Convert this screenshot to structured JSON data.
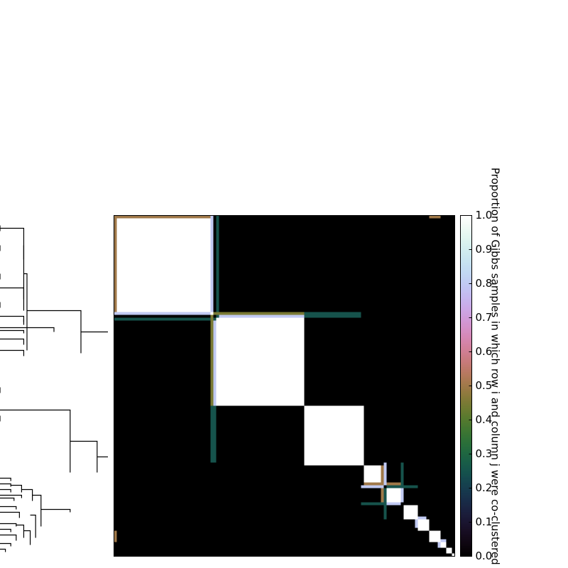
{
  "chart_data": {
    "type": "heatmap",
    "title": "",
    "colorbar": {
      "label": "Proportion of Gibbs samples in which row i and column j were co-clustered",
      "min": 0.0,
      "max": 1.0,
      "ticks": [
        "0.0",
        "0.1",
        "0.2",
        "0.3",
        "0.4",
        "0.5",
        "0.6",
        "0.7",
        "0.8",
        "0.9",
        "1.0"
      ],
      "colormap": "cubehelix"
    },
    "n": 120,
    "blocks": [
      {
        "start": 1,
        "end": 34,
        "value": 1.0
      },
      {
        "start": 36,
        "end": 66,
        "value": 1.0
      },
      {
        "start": 67,
        "end": 87,
        "value": 1.0
      },
      {
        "start": 88,
        "end": 94,
        "value": 1.0
      },
      {
        "start": 96,
        "end": 100,
        "value": 1.0
      },
      {
        "start": 102,
        "end": 106,
        "value": 1.0
      },
      {
        "start": 107,
        "end": 110,
        "value": 1.0
      },
      {
        "start": 111,
        "end": 114,
        "value": 1.0
      },
      {
        "start": 115,
        "end": 116,
        "value": 1.0
      },
      {
        "start": 117,
        "end": 118,
        "value": 1.0
      },
      {
        "start": 119,
        "end": 119,
        "value": 1.0
      }
    ],
    "bands": [
      {
        "i0": 0,
        "i1": 0,
        "j0": 0,
        "j1": 34,
        "value": 0.5
      },
      {
        "i0": 0,
        "i1": 34,
        "j0": 0,
        "j1": 0,
        "value": 0.5
      },
      {
        "i0": 0,
        "i1": 33,
        "j0": 34,
        "j1": 34,
        "value": 0.8
      },
      {
        "i0": 34,
        "i1": 34,
        "j0": 0,
        "j1": 33,
        "value": 0.8
      },
      {
        "i0": 0,
        "i1": 35,
        "j0": 36,
        "j1": 36,
        "value": 0.25
      },
      {
        "i0": 36,
        "i1": 36,
        "j0": 0,
        "j1": 35,
        "value": 0.25
      },
      {
        "i0": 37,
        "i1": 66,
        "j0": 35,
        "j1": 35,
        "value": 0.8
      },
      {
        "i0": 35,
        "i1": 35,
        "j0": 37,
        "j1": 66,
        "value": 0.8
      },
      {
        "i0": 35,
        "i1": 66,
        "j0": 34,
        "j1": 34,
        "value": 0.45
      },
      {
        "i0": 34,
        "i1": 34,
        "j0": 35,
        "j1": 66,
        "value": 0.45
      },
      {
        "i0": 67,
        "i1": 86,
        "j0": 34,
        "j1": 34,
        "value": 0.25
      },
      {
        "i0": 34,
        "i1": 34,
        "j0": 67,
        "j1": 86,
        "value": 0.25
      },
      {
        "i0": 35,
        "i1": 35,
        "j0": 67,
        "j1": 86,
        "value": 0.25
      },
      {
        "i0": 67,
        "i1": 86,
        "j0": 35,
        "j1": 35,
        "value": 0.25
      },
      {
        "i0": 0,
        "i1": 0,
        "j0": 111,
        "j1": 114,
        "value": 0.5
      },
      {
        "i0": 111,
        "i1": 114,
        "j0": 0,
        "j1": 0,
        "value": 0.5
      },
      {
        "i0": 88,
        "i1": 100,
        "j0": 94,
        "j1": 94,
        "value": 0.5
      },
      {
        "i0": 94,
        "i1": 94,
        "j0": 88,
        "j1": 100,
        "value": 0.5
      },
      {
        "i0": 95,
        "i1": 95,
        "j0": 87,
        "j1": 94,
        "value": 0.8
      },
      {
        "i0": 87,
        "i1": 94,
        "j0": 95,
        "j1": 95,
        "value": 0.8
      },
      {
        "i0": 95,
        "i1": 95,
        "j0": 96,
        "j1": 106,
        "value": 0.25
      },
      {
        "i0": 96,
        "i1": 106,
        "j0": 95,
        "j1": 95,
        "value": 0.25
      },
      {
        "i0": 101,
        "i1": 101,
        "j0": 87,
        "j1": 95,
        "value": 0.25
      },
      {
        "i0": 87,
        "i1": 95,
        "j0": 101,
        "j1": 101,
        "value": 0.25
      },
      {
        "i0": 96,
        "i1": 100,
        "j0": 101,
        "j1": 101,
        "value": 0.8
      },
      {
        "i0": 101,
        "i1": 101,
        "j0": 96,
        "j1": 100,
        "value": 0.8
      },
      {
        "i0": 107,
        "i1": 109,
        "j0": 106,
        "j1": 106,
        "value": 0.8
      },
      {
        "i0": 106,
        "i1": 106,
        "j0": 107,
        "j1": 109,
        "value": 0.8
      },
      {
        "i0": 115,
        "i1": 116,
        "j0": 114,
        "j1": 114,
        "value": 0.8
      },
      {
        "i0": 114,
        "i1": 114,
        "j0": 115,
        "j1": 116,
        "value": 0.8
      }
    ],
    "dendrogram": [
      [
        0.0,
        3,
        0.0,
        5
      ],
      [
        0.0,
        10,
        0.0,
        12
      ],
      [
        0.0,
        20,
        0.0,
        22
      ],
      [
        0.0,
        30,
        0.0,
        32
      ],
      [
        0.0,
        4,
        0.22,
        15
      ],
      [
        0.0,
        25,
        0.22,
        33
      ],
      [
        0.22,
        10,
        0.22,
        29
      ],
      [
        0.0,
        35,
        0.22,
        37
      ],
      [
        0.0,
        40,
        0.22,
        41
      ],
      [
        0.22,
        36,
        0.22,
        38
      ],
      [
        0.0,
        39,
        0.5,
        40.5
      ],
      [
        0.0,
        43,
        0.22,
        45
      ],
      [
        0.0,
        47,
        0.22,
        49
      ],
      [
        0.22,
        20,
        0.25,
        47
      ],
      [
        0.25,
        33,
        0.75,
        48
      ],
      [
        0.0,
        60,
        0.0,
        62
      ],
      [
        0.0,
        70,
        0.0,
        72
      ],
      [
        0.0,
        68,
        0.65,
        90
      ],
      [
        0.0,
        92,
        0.1,
        93
      ],
      [
        0.0,
        94,
        0.1,
        95
      ],
      [
        0.0,
        96,
        0.1,
        97
      ],
      [
        0.0,
        99,
        0.13,
        100
      ],
      [
        0.1,
        94.5,
        0.2,
        97
      ],
      [
        0.0,
        98,
        0.2,
        99
      ],
      [
        0.0,
        102,
        0.15,
        103
      ],
      [
        0.0,
        104,
        0.18,
        106
      ],
      [
        0.0,
        108,
        0.15,
        109
      ],
      [
        0.0,
        110,
        0.1,
        111
      ],
      [
        0.0,
        112,
        0.15,
        114
      ],
      [
        0.0,
        115,
        0.1,
        116
      ],
      [
        0.0,
        117,
        0.05,
        118
      ],
      [
        0.15,
        108.5,
        0.22,
        113
      ],
      [
        0.22,
        110.5,
        0.28,
        115.5
      ],
      [
        0.28,
        105,
        0.33,
        113
      ],
      [
        0.2,
        96,
        0.3,
        100
      ],
      [
        0.3,
        98,
        0.38,
        109
      ],
      [
        0.38,
        103,
        0.65,
        104
      ],
      [
        0.65,
        79,
        0.9,
        90
      ],
      [
        0.9,
        84.5,
        1.0,
        84.5
      ],
      [
        0.75,
        40.5,
        1.0,
        40.5
      ]
    ]
  }
}
